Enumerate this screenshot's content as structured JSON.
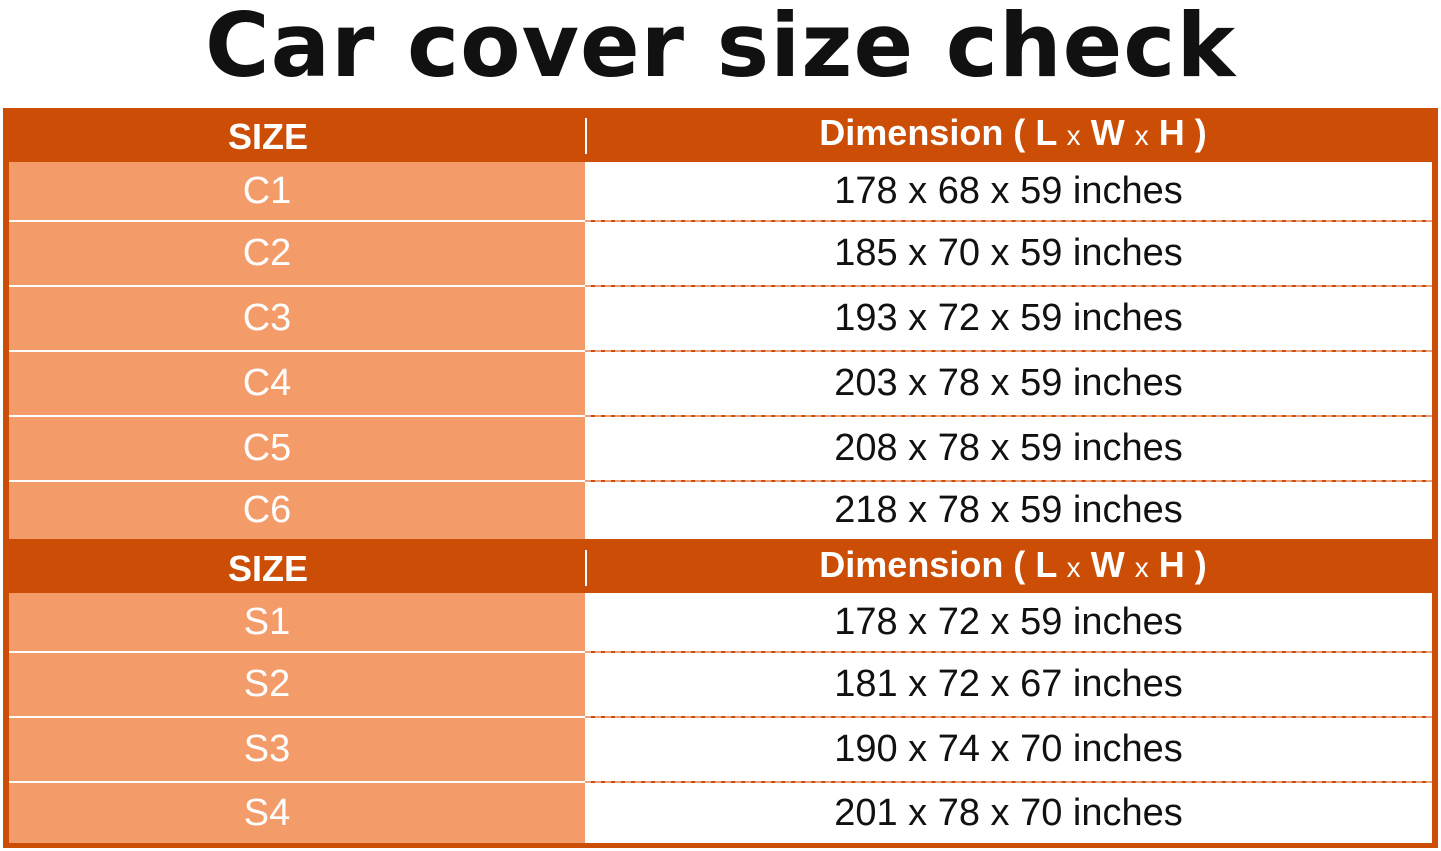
{
  "title": "Car cover size check",
  "header": {
    "size": "SIZE",
    "dimension": "Dimension (",
    "L": "L",
    "x": "x",
    "W": "W",
    "H": "H",
    "close": ")"
  },
  "colors": {
    "header": "#cc4e06",
    "size_cell": "#f49b6a"
  },
  "groups": [
    {
      "rows": [
        {
          "size": "C1",
          "dimension": "178 x 68 x 59 inches"
        },
        {
          "size": "C2",
          "dimension": "185 x 70 x 59 inches"
        },
        {
          "size": "C3",
          "dimension": "193 x 72 x 59 inches"
        },
        {
          "size": "C4",
          "dimension": "203 x 78 x 59 inches"
        },
        {
          "size": "C5",
          "dimension": "208 x 78 x 59 inches"
        },
        {
          "size": "C6",
          "dimension": "218 x 78 x 59 inches"
        }
      ]
    },
    {
      "rows": [
        {
          "size": "S1",
          "dimension": "178 x 72 x 59 inches"
        },
        {
          "size": "S2",
          "dimension": "181 x 72 x 67 inches"
        },
        {
          "size": "S3",
          "dimension": "190 x 74 x 70 inches"
        },
        {
          "size": "S4",
          "dimension": "201 x 78 x 70 inches"
        }
      ]
    }
  ]
}
